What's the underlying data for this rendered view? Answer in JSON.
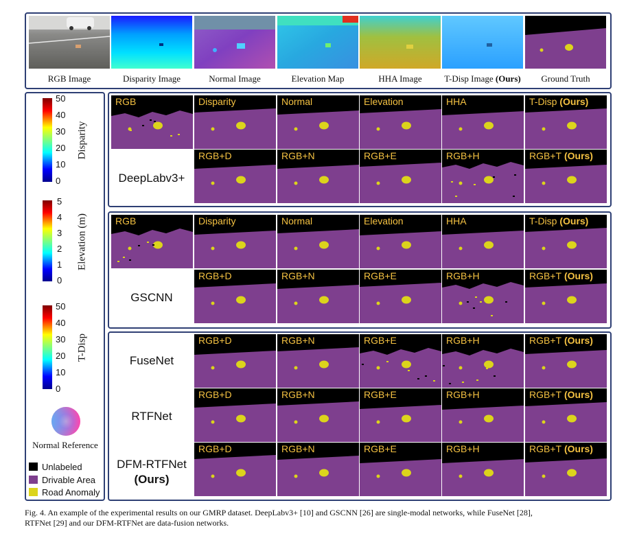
{
  "top_row": {
    "labels": [
      "RGB Image",
      "Disparity Image",
      "Normal Image",
      "Elevation Map",
      "HHA Image",
      "T-Disp Image",
      "Ground Truth"
    ],
    "ours_suffix": "(Ours)"
  },
  "colorbars": {
    "disparity": {
      "title": "Disparity",
      "ticks": [
        "50",
        "40",
        "30",
        "20",
        "10",
        "0"
      ]
    },
    "elevation": {
      "title": "Elevation (m)",
      "ticks": [
        "5",
        "4",
        "3",
        "2",
        "1",
        "0"
      ]
    },
    "tdisp": {
      "title": "T-Disp",
      "ticks": [
        "50",
        "40",
        "30",
        "20",
        "10",
        "0"
      ]
    },
    "normal_reference": "Normal Reference"
  },
  "legend": [
    {
      "label": "Unlabeled",
      "color": "#000000"
    },
    {
      "label": "Drivable Area",
      "color": "#7e3f8e"
    },
    {
      "label": "Road Anomaly",
      "color": "#dcd41c"
    }
  ],
  "panels": {
    "deeplab": {
      "name": "DeepLabv3+",
      "row1": [
        "RGB",
        "Disparity",
        "Normal",
        "Elevation",
        "HHA",
        "T-Disp"
      ],
      "row2": [
        "RGB+D",
        "RGB+N",
        "RGB+E",
        "RGB+H",
        "RGB+T"
      ]
    },
    "gscnn": {
      "name": "GSCNN",
      "row1": [
        "RGB",
        "Disparity",
        "Normal",
        "Elevation",
        "HHA",
        "T-Disp"
      ],
      "row2": [
        "RGB+D",
        "RGB+N",
        "RGB+E",
        "RGB+H",
        "RGB+T"
      ]
    },
    "fusion": {
      "rows": [
        {
          "name": "FuseNet",
          "labels": [
            "RGB+D",
            "RGB+N",
            "RGB+E",
            "RGB+H",
            "RGB+T"
          ]
        },
        {
          "name": "RTFNet",
          "labels": [
            "RGB+D",
            "RGB+N",
            "RGB+E",
            "RGB+H",
            "RGB+T"
          ]
        },
        {
          "name": "DFM-RTFNet",
          "name_suffix": "(Ours)",
          "labels": [
            "RGB+D",
            "RGB+N",
            "RGB+E",
            "RGB+H",
            "RGB+T"
          ]
        }
      ]
    },
    "ours_suffix": "(Ours)"
  },
  "caption": {
    "line1": "Fig. 4.   An example of the experimental results on our GMRP dataset. DeepLabv3+ [10] and GSCNN [26] are single-modal networks, while FuseNet [28],",
    "line2": "RTFNet [29] and our DFM-RTFNet are data-fusion networks."
  },
  "colors": {
    "unlabeled": "#000000",
    "drivable": "#7e3f8e",
    "anomaly": "#dcd41c",
    "label_text": "#f5c242",
    "frame": "#2e3f74"
  }
}
